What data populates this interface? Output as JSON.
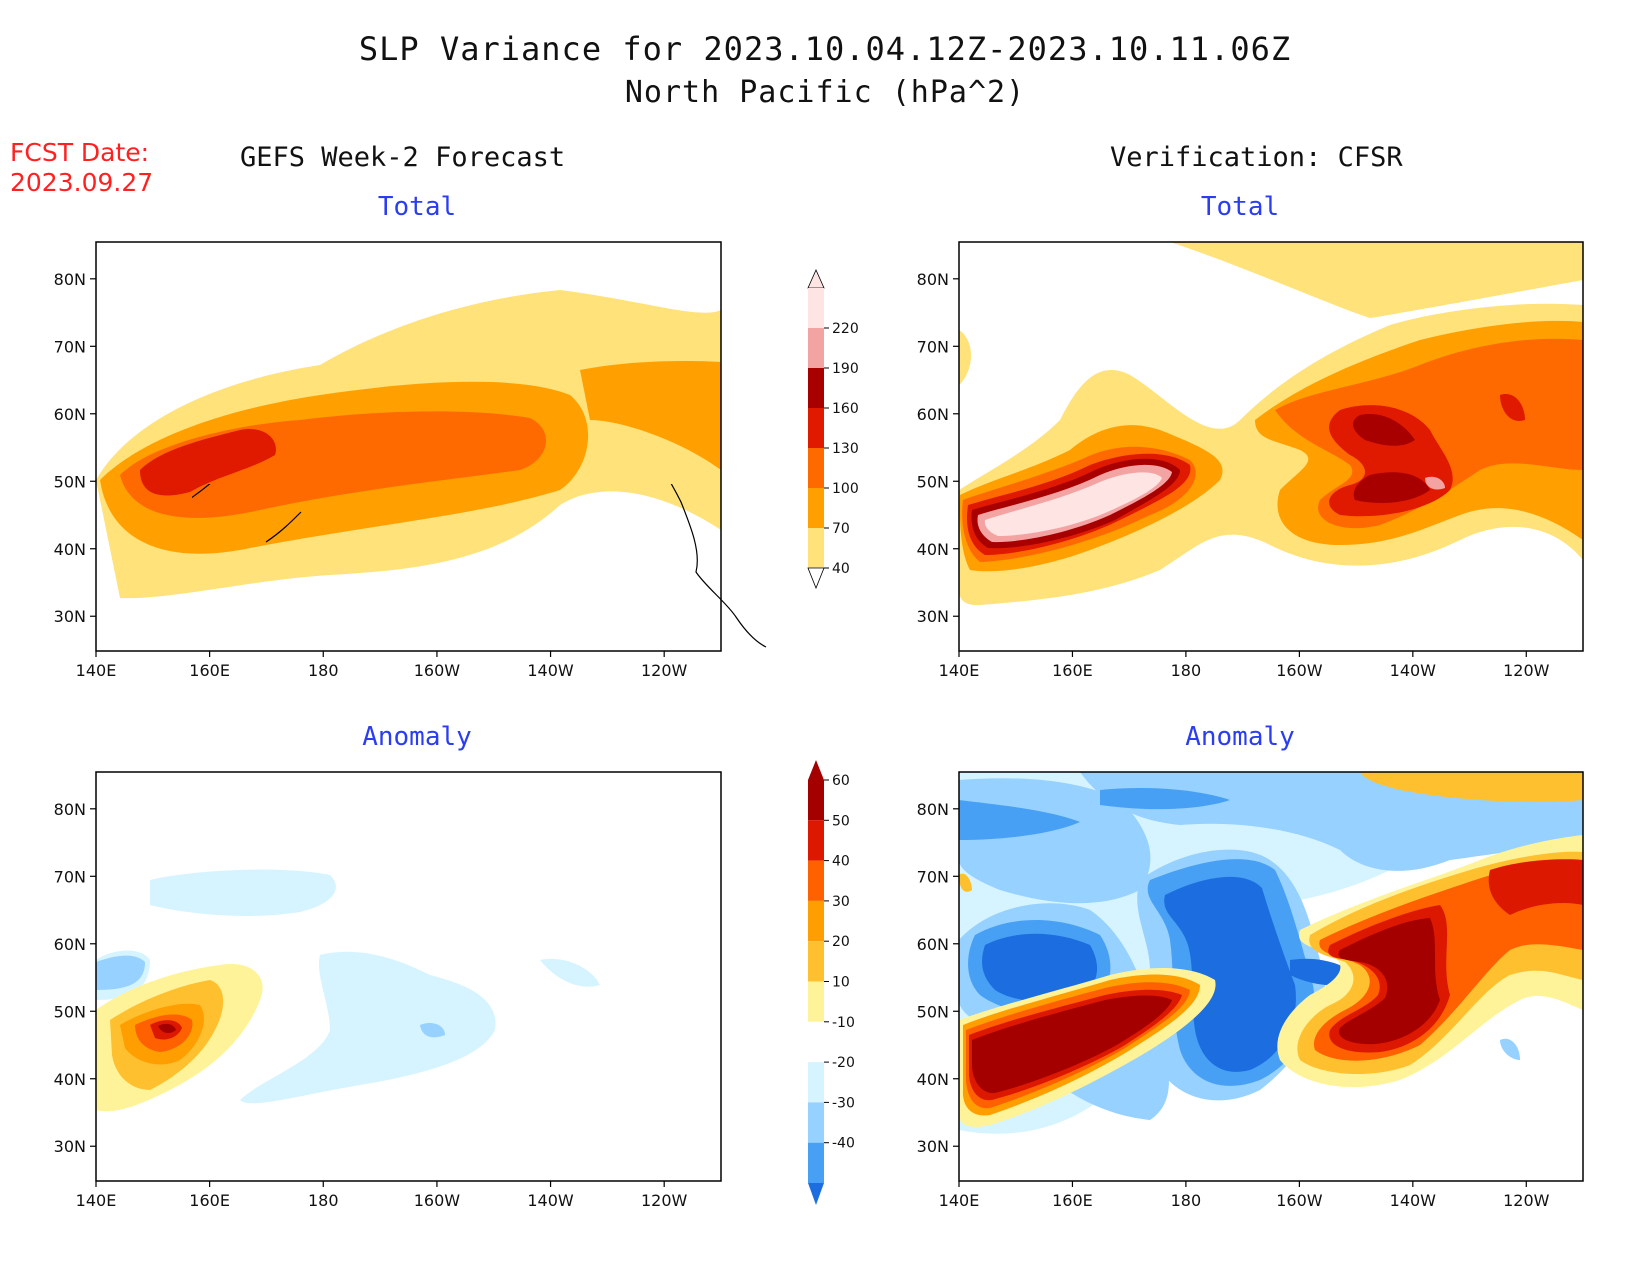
{
  "header": {
    "title_line1": "SLP Variance for 2023.10.04.12Z-2023.10.11.06Z",
    "title_line2": "North Pacific (hPa^2)",
    "fcst_label": "FCST Date:",
    "fcst_date": "2023.09.27",
    "left_column_title": "GEFS Week-2 Forecast",
    "right_column_title": "Verification: CFSR"
  },
  "panels": {
    "gefs_total_title": "Total",
    "cfsr_total_title": "Total",
    "gefs_anom_title": "Anomaly",
    "cfsr_anom_title": "Anomaly"
  },
  "axes": {
    "lat_ticks": [
      "80N",
      "70N",
      "60N",
      "50N",
      "40N",
      "30N"
    ],
    "lon_ticks": [
      "140E",
      "160E",
      "180",
      "160W",
      "140W",
      "120W"
    ]
  },
  "colorbars": {
    "total": {
      "labels": [
        "220",
        "190",
        "160",
        "130",
        "100",
        "70",
        "40"
      ],
      "colors": [
        "#ffe4e4",
        "#f4a3a3",
        "#a80000",
        "#e01a00",
        "#ff6a00",
        "#ffa000",
        "#ffe27a"
      ]
    },
    "anomaly": {
      "labels": [
        "60",
        "50",
        "40",
        "30",
        "20",
        "10",
        "-10",
        "-20",
        "-30",
        "-40"
      ],
      "colors": [
        "#a50000",
        "#dd1800",
        "#ff6000",
        "#ff9e00",
        "#ffc030",
        "#fff39a",
        "#ffffff",
        "#d6f4ff",
        "#96d1ff",
        "#48a0f5",
        "#1c6ee0"
      ]
    }
  }
}
